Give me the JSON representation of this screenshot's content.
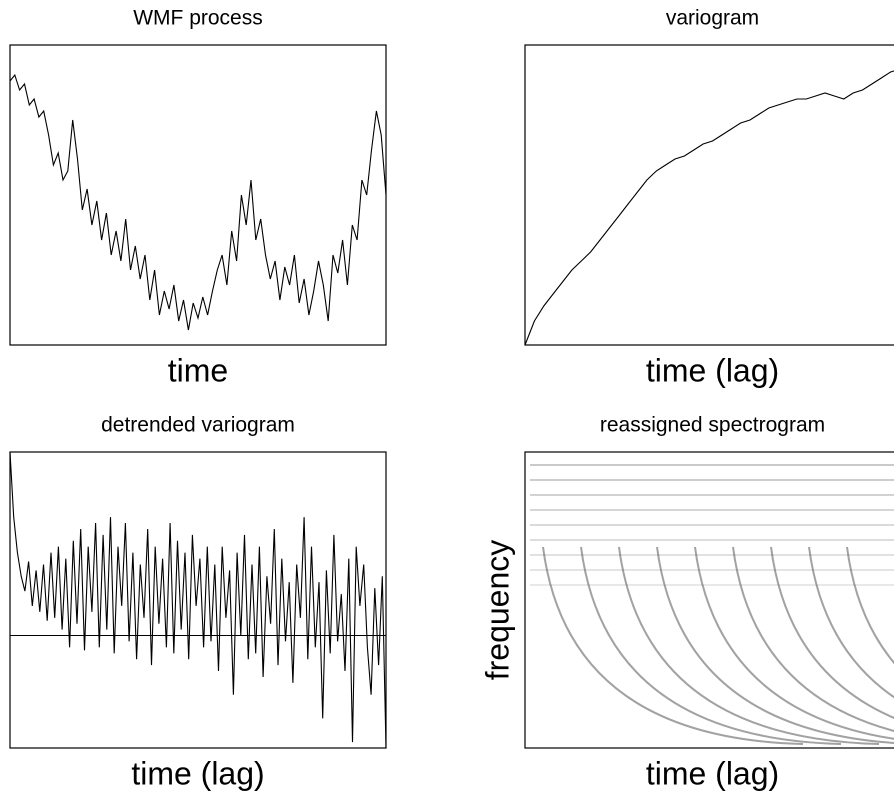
{
  "chart_data": [
    {
      "type": "line",
      "title": "WMF process",
      "x_label": "time",
      "color": "#000000",
      "ylim": [
        0,
        100
      ],
      "values": [
        88,
        90,
        85,
        87,
        80,
        82,
        76,
        78,
        70,
        60,
        64,
        55,
        58,
        75,
        62,
        45,
        52,
        40,
        48,
        35,
        44,
        30,
        38,
        28,
        42,
        25,
        33,
        22,
        30,
        15,
        25,
        10,
        18,
        12,
        20,
        8,
        15,
        5,
        14,
        9,
        16,
        10,
        18,
        25,
        30,
        20,
        38,
        28,
        50,
        40,
        55,
        35,
        42,
        30,
        22,
        28,
        15,
        26,
        20,
        30,
        14,
        22,
        10,
        18,
        28,
        20,
        8,
        30,
        24,
        35,
        20,
        40,
        35,
        55,
        50,
        65,
        78,
        70,
        50
      ]
    },
    {
      "type": "line",
      "title": "variogram",
      "x_label": "time (lag)",
      "color": "#000000",
      "ylim": [
        0,
        100
      ],
      "values": [
        0,
        8,
        13,
        17,
        21,
        25,
        28,
        31,
        35,
        39,
        43,
        47,
        51,
        55,
        58,
        60,
        62,
        63,
        65,
        67,
        68,
        70,
        72,
        74,
        75,
        77,
        79,
        80,
        81,
        82,
        82,
        83,
        84,
        83,
        82,
        84,
        85,
        87,
        89,
        91,
        92
      ]
    },
    {
      "type": "line",
      "title": "detrended variogram",
      "x_label": "time (lag)",
      "color": "#000000",
      "ylim": [
        -38,
        62
      ],
      "hline": 0,
      "values": [
        62,
        40,
        28,
        20,
        15,
        25,
        10,
        22,
        8,
        24,
        5,
        28,
        6,
        30,
        2,
        26,
        -4,
        32,
        4,
        36,
        -5,
        30,
        8,
        38,
        -4,
        34,
        2,
        40,
        -6,
        30,
        10,
        38,
        -2,
        28,
        -8,
        24,
        6,
        36,
        -10,
        30,
        4,
        26,
        -4,
        38,
        -6,
        32,
        2,
        28,
        -8,
        34,
        10,
        26,
        -4,
        30,
        -2,
        24,
        -12,
        30,
        6,
        22,
        -20,
        28,
        0,
        34,
        -8,
        24,
        -6,
        30,
        -14,
        20,
        4,
        36,
        -10,
        26,
        -2,
        18,
        -16,
        24,
        6,
        40,
        -8,
        30,
        -4,
        18,
        -28,
        22,
        -6,
        34,
        -2,
        14,
        -12,
        26,
        -36,
        30,
        10,
        24,
        -4,
        -20,
        16,
        -10,
        20,
        -38
      ]
    },
    {
      "type": "image",
      "title": "reassigned spectrogram",
      "x_label": "time (lag)",
      "y_label": "frequency"
    }
  ]
}
